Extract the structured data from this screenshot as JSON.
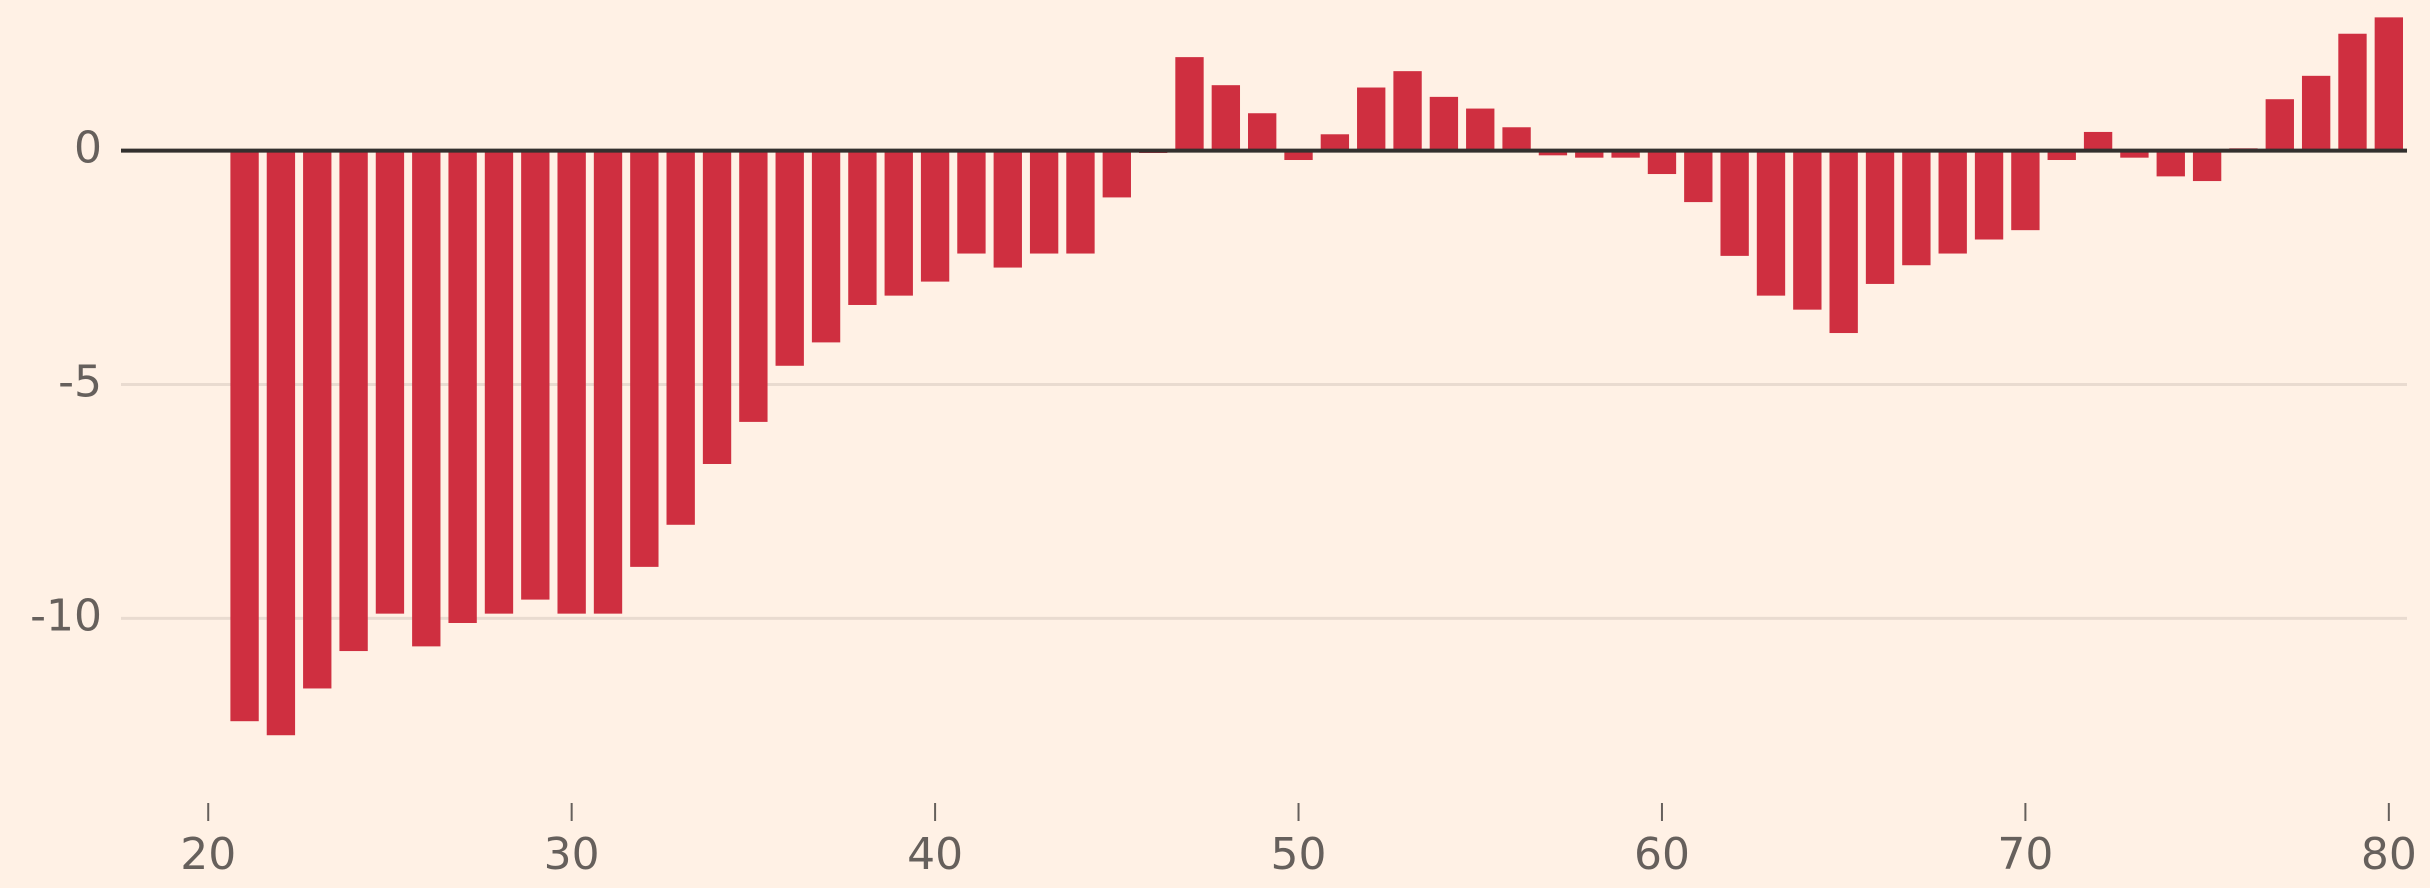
{
  "chart_data": {
    "type": "bar",
    "x": [
      21,
      22,
      23,
      24,
      25,
      26,
      27,
      28,
      29,
      30,
      31,
      32,
      33,
      34,
      35,
      36,
      37,
      38,
      39,
      40,
      41,
      42,
      43,
      44,
      45,
      46,
      47,
      48,
      49,
      50,
      51,
      52,
      53,
      54,
      55,
      56,
      57,
      58,
      59,
      60,
      61,
      62,
      63,
      64,
      65,
      66,
      67,
      68,
      69,
      70,
      71,
      72,
      73,
      74,
      75,
      76,
      77,
      78,
      79,
      80
    ],
    "values": [
      -12.2,
      -12.5,
      -11.5,
      -10.7,
      -9.9,
      -10.6,
      -10.1,
      -9.9,
      -9.6,
      -9.9,
      -9.9,
      -8.9,
      -8.0,
      -6.7,
      -5.8,
      -4.6,
      -4.1,
      -3.3,
      -3.1,
      -2.8,
      -2.2,
      -2.5,
      -2.2,
      -2.2,
      -1.0,
      -0.05,
      2.0,
      1.4,
      0.8,
      -0.2,
      0.35,
      1.35,
      1.7,
      1.15,
      0.9,
      0.5,
      -0.1,
      -0.15,
      -0.15,
      -0.5,
      -1.1,
      -2.25,
      -3.1,
      -3.4,
      -3.9,
      -2.85,
      -2.45,
      -2.2,
      -1.9,
      -1.7,
      -0.2,
      0.4,
      -0.15,
      -0.55,
      -0.65,
      0.05,
      1.1,
      1.6,
      2.5,
      2.85
    ],
    "color": "#cf2f40",
    "xlim": [
      17.6,
      80.5
    ],
    "xticks": [
      20,
      30,
      40,
      50,
      60,
      70,
      80
    ],
    "ylim": [
      -13.5,
      3.2
    ],
    "yticks": [
      0,
      -5,
      -10
    ],
    "grid": true
  }
}
